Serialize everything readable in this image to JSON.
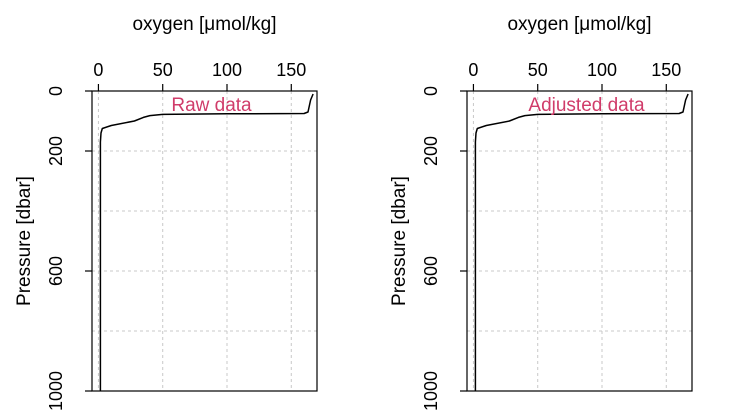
{
  "chart_data": [
    {
      "type": "line",
      "panel_label": "Raw data",
      "xlabel": "oxygen [μmol/kg]",
      "ylabel": "Pressure [dbar]",
      "xlim": [
        -5,
        170
      ],
      "ylim": [
        1000,
        0
      ],
      "x_ticks": [
        0,
        50,
        100,
        150
      ],
      "y_ticks": [
        0,
        200,
        600,
        1000
      ],
      "grid_x": [
        0,
        50,
        100,
        150
      ],
      "grid_y": [
        0,
        200,
        400,
        600,
        800,
        1000
      ],
      "grid": true,
      "x_axis_position": "top",
      "series": [
        {
          "x": [
            167,
            165,
            163,
            160,
            100,
            50,
            40,
            35,
            28,
            10,
            3,
            2,
            1.5,
            1.5,
            1.5,
            1.5,
            1.5
          ],
          "y": [
            10,
            30,
            70,
            75,
            76,
            78,
            82,
            88,
            100,
            115,
            125,
            140,
            170,
            400,
            700,
            900,
            1000
          ]
        }
      ]
    },
    {
      "type": "line",
      "panel_label": "Adjusted data",
      "xlabel": "oxygen [μmol/kg]",
      "ylabel": "Pressure [dbar]",
      "xlim": [
        -5,
        170
      ],
      "ylim": [
        1000,
        0
      ],
      "x_ticks": [
        0,
        50,
        100,
        150
      ],
      "y_ticks": [
        0,
        200,
        600,
        1000
      ],
      "grid_x": [
        0,
        50,
        100,
        150
      ],
      "grid_y": [
        0,
        200,
        400,
        600,
        800,
        1000
      ],
      "grid": true,
      "x_axis_position": "top",
      "series": [
        {
          "x": [
            167,
            165,
            163,
            160,
            100,
            50,
            40,
            35,
            28,
            10,
            3,
            2,
            1.5,
            1.5,
            1.5,
            1.5,
            1.5
          ],
          "y": [
            10,
            30,
            70,
            75,
            76,
            78,
            82,
            88,
            100,
            115,
            125,
            140,
            170,
            400,
            700,
            900,
            1000
          ]
        }
      ]
    }
  ],
  "colors": {
    "panel_label": "#d03c6a",
    "line": "#000000",
    "grid": "#c8c8c8"
  }
}
